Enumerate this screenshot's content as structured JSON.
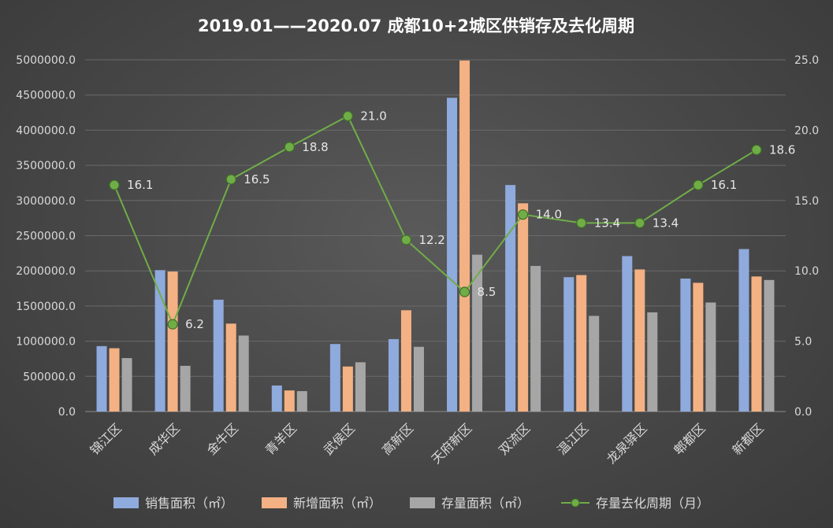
{
  "chart_data": {
    "type": "bar",
    "title": "2019.01——2020.07 成都10+2城区供销存及去化周期",
    "categories": [
      "锦江区",
      "成华区",
      "金牛区",
      "青羊区",
      "武侯区",
      "高新区",
      "天府新区",
      "双流区",
      "温江区",
      "龙泉驿区",
      "郫都区",
      "新都区"
    ],
    "series": [
      {
        "name": "销售面积（㎡）",
        "color": "#8faadc",
        "axis": "left",
        "values": [
          930000,
          2010000,
          1590000,
          370000,
          960000,
          1030000,
          4460000,
          3220000,
          1910000,
          2210000,
          1890000,
          2310000
        ]
      },
      {
        "name": "新增面积（㎡）",
        "color": "#f4b183",
        "axis": "left",
        "values": [
          900000,
          1990000,
          1250000,
          300000,
          640000,
          1440000,
          4990000,
          2960000,
          1940000,
          2020000,
          1830000,
          1920000
        ]
      },
      {
        "name": "存量面积（㎡）",
        "color": "#a6a6a6",
        "axis": "left",
        "values": [
          760000,
          650000,
          1080000,
          290000,
          700000,
          920000,
          2230000,
          2070000,
          1360000,
          1410000,
          1550000,
          1870000
        ]
      },
      {
        "name": "存量去化周期（月）",
        "color": "#70ad47",
        "axis": "right",
        "type": "line",
        "values": [
          16.1,
          6.2,
          16.5,
          18.8,
          21.0,
          12.2,
          8.5,
          14.0,
          13.4,
          13.4,
          16.1,
          18.6
        ],
        "labels": [
          "16.1",
          "6.2",
          "16.5",
          "18.8",
          "21.0",
          "12.2",
          "8.5",
          "14.0",
          "13.4",
          "13.4",
          "16.1",
          "18.6"
        ]
      }
    ],
    "y_left": {
      "lim": [
        0,
        5000000
      ],
      "ticks": [
        "0.0",
        "500000.0",
        "1000000.0",
        "1500000.0",
        "2000000.0",
        "2500000.0",
        "3000000.0",
        "3500000.0",
        "4000000.0",
        "4500000.0",
        "5000000.0"
      ]
    },
    "y_right": {
      "lim": [
        0,
        25
      ],
      "ticks": [
        "0.0",
        "5.0",
        "10.0",
        "15.0",
        "20.0",
        "25.0"
      ]
    },
    "grid": true,
    "legend": "bottom"
  }
}
